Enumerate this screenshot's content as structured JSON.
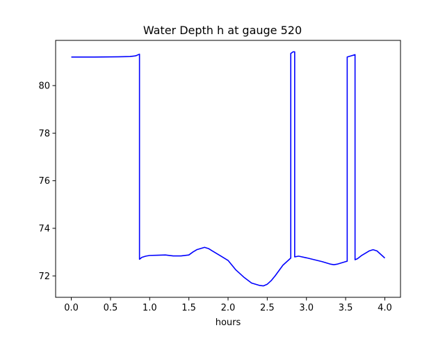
{
  "chart_data": {
    "type": "line",
    "title": "Water Depth h at gauge 520",
    "xlabel": "hours",
    "ylabel": "",
    "xlim": [
      -0.2,
      4.2
    ],
    "ylim": [
      71.1,
      81.9
    ],
    "xticks": [
      0.0,
      0.5,
      1.0,
      1.5,
      2.0,
      2.5,
      3.0,
      3.5,
      4.0
    ],
    "xtick_labels": [
      "0.0",
      "0.5",
      "1.0",
      "1.5",
      "2.0",
      "2.5",
      "3.0",
      "3.5",
      "4.0"
    ],
    "yticks": [
      72,
      74,
      76,
      78,
      80
    ],
    "ytick_labels": [
      "72",
      "74",
      "76",
      "78",
      "80"
    ],
    "grid": false,
    "series": [
      {
        "color": "#0000ff",
        "x": [
          0.0,
          0.3,
          0.6,
          0.75,
          0.82,
          0.87,
          0.87,
          0.9,
          0.95,
          1.0,
          1.1,
          1.2,
          1.3,
          1.4,
          1.5,
          1.55,
          1.6,
          1.7,
          1.75,
          1.8,
          1.9,
          2.0,
          2.05,
          2.1,
          2.2,
          2.3,
          2.4,
          2.45,
          2.5,
          2.55,
          2.6,
          2.7,
          2.8,
          2.8,
          2.83,
          2.85,
          2.85,
          2.9,
          3.0,
          3.1,
          3.2,
          3.3,
          3.35,
          3.4,
          3.5,
          3.52,
          3.52,
          3.58,
          3.62,
          3.62,
          3.65,
          3.7,
          3.8,
          3.85,
          3.9,
          4.0
        ],
        "values": [
          81.2,
          81.2,
          81.21,
          81.22,
          81.25,
          81.32,
          72.7,
          72.78,
          72.83,
          72.86,
          72.87,
          72.88,
          72.84,
          72.84,
          72.88,
          73.0,
          73.1,
          73.2,
          73.15,
          73.05,
          72.85,
          72.65,
          72.45,
          72.25,
          71.95,
          71.7,
          71.6,
          71.58,
          71.65,
          71.8,
          72.0,
          72.45,
          72.75,
          81.35,
          81.42,
          81.42,
          72.8,
          72.83,
          72.76,
          72.68,
          72.6,
          72.5,
          72.47,
          72.5,
          72.6,
          72.62,
          81.2,
          81.26,
          81.3,
          72.68,
          72.72,
          72.85,
          73.05,
          73.1,
          73.05,
          72.75
        ]
      }
    ]
  }
}
